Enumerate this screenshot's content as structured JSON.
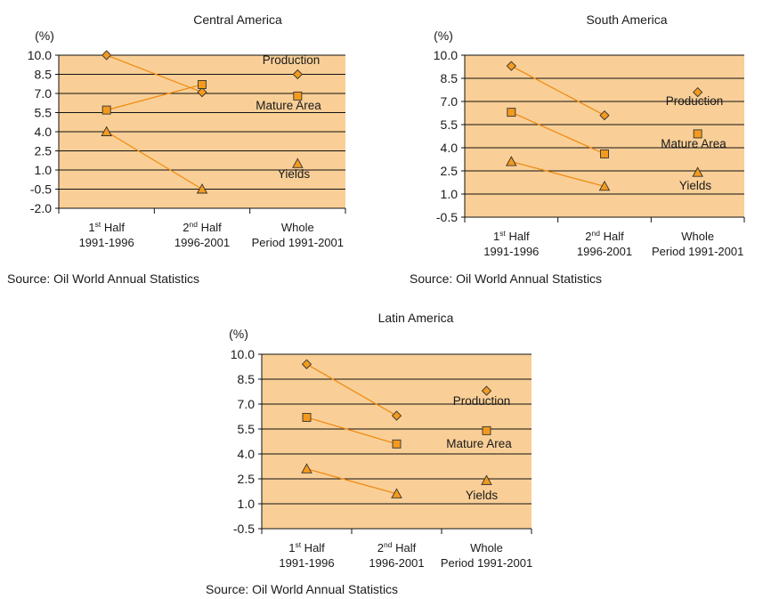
{
  "chart_data": [
    {
      "type": "line",
      "title": "Central America",
      "ylabel": "(%)",
      "ylim": [
        -2.0,
        10.0
      ],
      "yticks": [
        "10.0",
        "8.5",
        "7.0",
        "5.5",
        "4.0",
        "2.5",
        "1.0",
        "-0.5",
        "-2.0"
      ],
      "categories": [
        {
          "line1_num": "1",
          "line1_sup": "st",
          "line1_rest": " Half",
          "line2": "1991-1996"
        },
        {
          "line1_num": "2",
          "line1_sup": "nd",
          "line1_rest": " Half",
          "line2": "1996-2001"
        },
        {
          "line1_num": "",
          "line1_sup": "",
          "line1_rest": "Whole",
          "line2": "Period 1991-2001"
        }
      ],
      "series": [
        {
          "name": "Production",
          "marker": "diamond",
          "values": [
            10.0,
            7.1,
            8.5
          ]
        },
        {
          "name": "Mature Area",
          "marker": "square",
          "values": [
            5.7,
            7.7,
            6.8
          ]
        },
        {
          "name": "Yields",
          "marker": "triangle",
          "values": [
            4.0,
            -0.5,
            1.5
          ]
        }
      ],
      "source": "Source: Oil World Annual Statistics"
    },
    {
      "type": "line",
      "title": "South America",
      "ylabel": "(%)",
      "ylim": [
        -0.5,
        10.0
      ],
      "yticks": [
        "10.0",
        "8.5",
        "7.0",
        "5.5",
        "4.0",
        "2.5",
        "1.0",
        "-0.5"
      ],
      "categories": [
        {
          "line1_num": "1",
          "line1_sup": "st",
          "line1_rest": " Half",
          "line2": "1991-1996"
        },
        {
          "line1_num": "2",
          "line1_sup": "nd",
          "line1_rest": " Half",
          "line2": "1996-2001"
        },
        {
          "line1_num": "",
          "line1_sup": "",
          "line1_rest": "Whole",
          "line2": "Period 1991-2001"
        }
      ],
      "series": [
        {
          "name": "Production",
          "marker": "diamond",
          "values": [
            9.3,
            6.1,
            7.6
          ]
        },
        {
          "name": "Mature Area",
          "marker": "square",
          "values": [
            6.3,
            3.6,
            4.9
          ]
        },
        {
          "name": "Yields",
          "marker": "triangle",
          "values": [
            3.1,
            1.5,
            2.4
          ]
        }
      ],
      "source": "Source: Oil World Annual Statistics"
    },
    {
      "type": "line",
      "title": "Latin America",
      "ylabel": "(%)",
      "ylim": [
        -0.5,
        10.0
      ],
      "yticks": [
        "10.0",
        "8.5",
        "7.0",
        "5.5",
        "4.0",
        "2.5",
        "1.0",
        "-0.5"
      ],
      "categories": [
        {
          "line1_num": "1",
          "line1_sup": "st",
          "line1_rest": " Half",
          "line2": "1991-1996"
        },
        {
          "line1_num": "2",
          "line1_sup": "nd",
          "line1_rest": " Half",
          "line2": "1996-2001"
        },
        {
          "line1_num": "",
          "line1_sup": "",
          "line1_rest": "Whole",
          "line2": "Period 1991-2001"
        }
      ],
      "series": [
        {
          "name": "Production",
          "marker": "diamond",
          "values": [
            9.4,
            6.3,
            7.8
          ]
        },
        {
          "name": "Mature Area",
          "marker": "square",
          "values": [
            6.2,
            4.6,
            5.4
          ]
        },
        {
          "name": "Yields",
          "marker": "triangle",
          "values": [
            3.1,
            1.6,
            2.4
          ]
        }
      ],
      "source": "Source: Oil World Annual Statistics"
    }
  ],
  "colors": {
    "plot_fill": "#f9cf97",
    "line": "#f08c14",
    "marker_fill": "#f39a1e",
    "marker_stroke": "#333333",
    "grid": "#111111",
    "text": "#1a1a1a"
  }
}
